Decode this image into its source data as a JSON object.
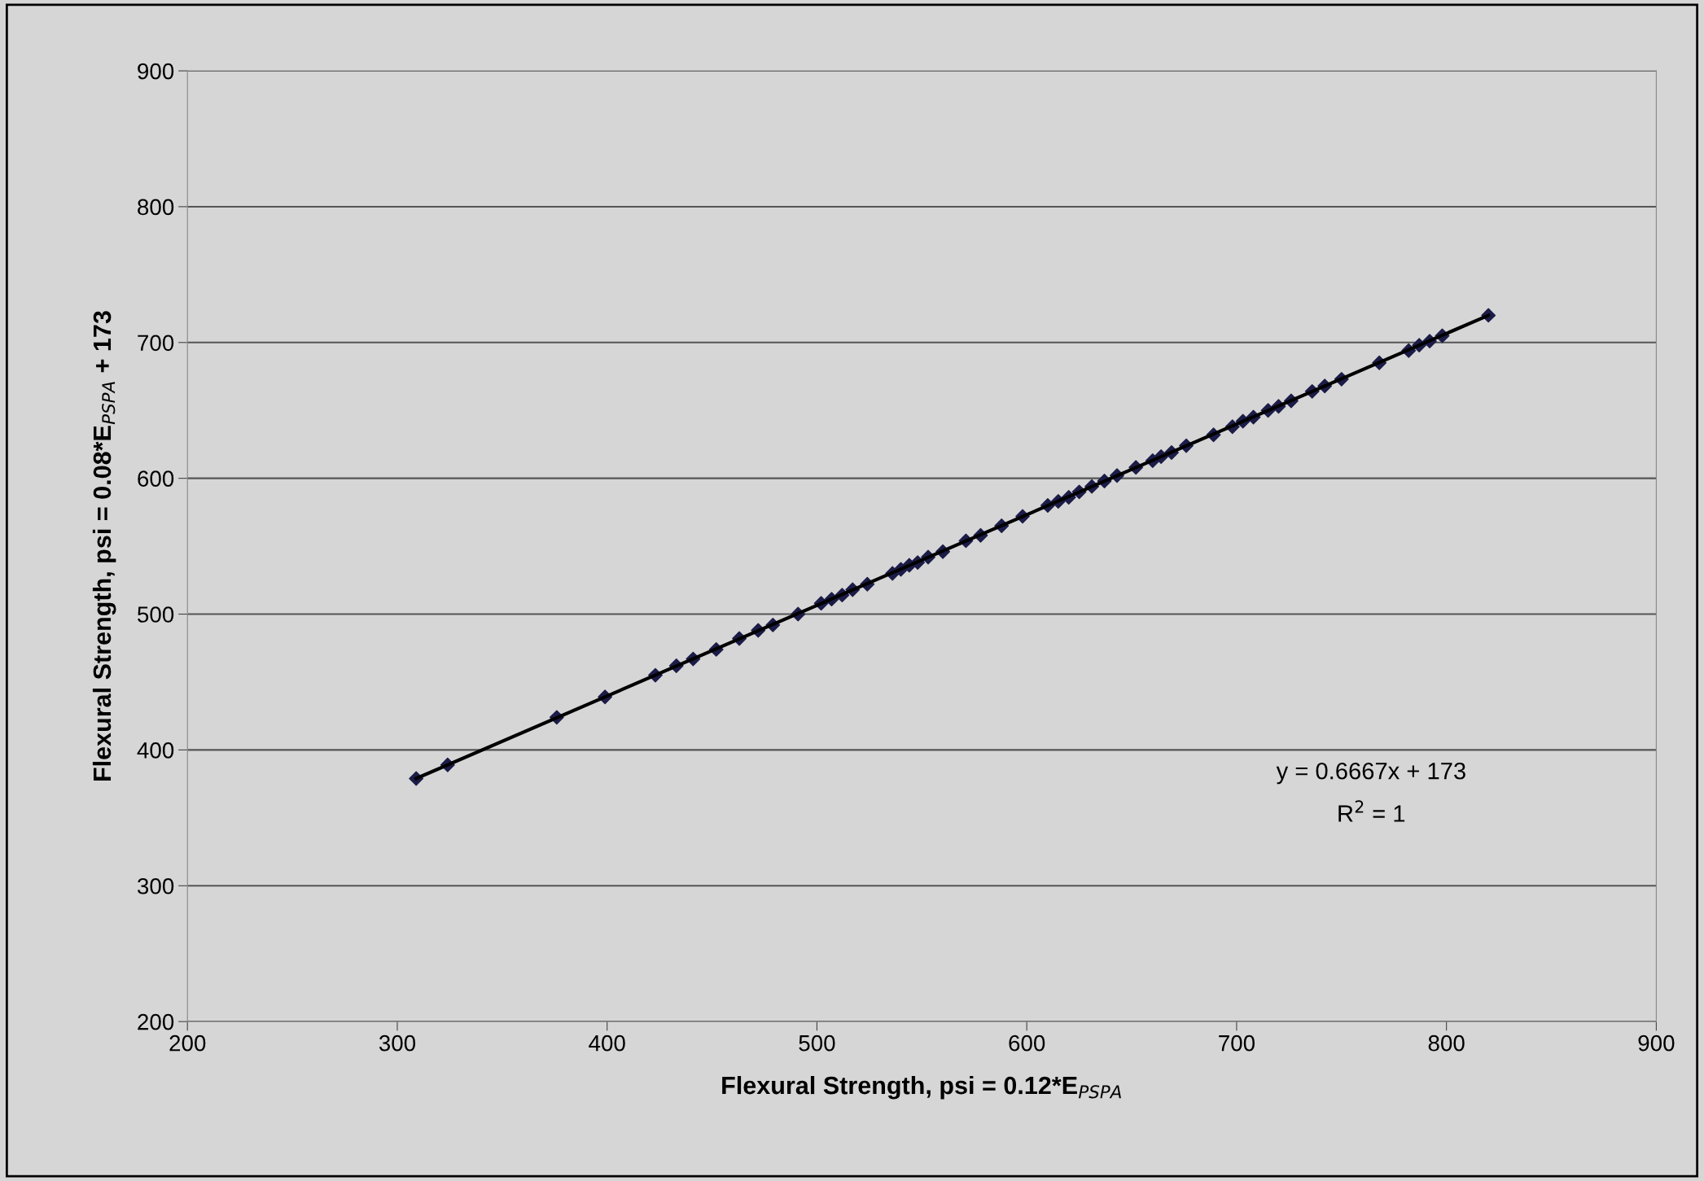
{
  "chart_data": {
    "type": "scatter",
    "xlabel": "Flexural Strength, psi = 0.12*E$_{PSPA}$",
    "ylabel": "Flexural Strength, psi = 0.08*E$_{PSPA}$ + 173",
    "x": [
      309,
      324,
      376,
      399,
      423,
      433,
      441,
      452,
      463,
      472,
      479,
      491,
      502,
      507,
      512,
      517,
      524,
      536,
      540,
      544,
      548,
      553,
      560,
      571,
      578,
      588,
      598,
      610,
      615,
      620,
      625,
      631,
      637,
      643,
      652,
      660,
      664,
      669,
      676,
      689,
      698,
      703,
      708,
      715,
      720,
      726,
      736,
      742,
      750,
      768,
      782,
      787,
      792,
      798,
      820
    ],
    "series": [
      {
        "color": "#1c1c48",
        "values": [
          379,
          389,
          424,
          439,
          455,
          462,
          467,
          474,
          482,
          488,
          492,
          500,
          508,
          511,
          514,
          518,
          522,
          530,
          533,
          536,
          538,
          542,
          546,
          554,
          558,
          565,
          572,
          580,
          583,
          586,
          590,
          594,
          598,
          602,
          608,
          613,
          616,
          619,
          624,
          632,
          638,
          642,
          645,
          650,
          653,
          657,
          664,
          668,
          673,
          685,
          694,
          698,
          701,
          705,
          720
        ]
      },
      {
        "type": "line",
        "color": "#000000",
        "x": [
          309,
          820
        ],
        "values": [
          379,
          720
        ],
        "marker": "none"
      }
    ],
    "marker": "diamond",
    "grid": "y",
    "xlim": [
      200,
      900
    ],
    "xticks": [
      200,
      300,
      400,
      500,
      600,
      700,
      800,
      900
    ],
    "ylim": [
      200,
      900
    ],
    "yticks": [
      200,
      300,
      400,
      500,
      600,
      700,
      800,
      900
    ],
    "annotations": [
      "y = 0.6667x + 173",
      "R$^{2}$ = 1"
    ]
  }
}
